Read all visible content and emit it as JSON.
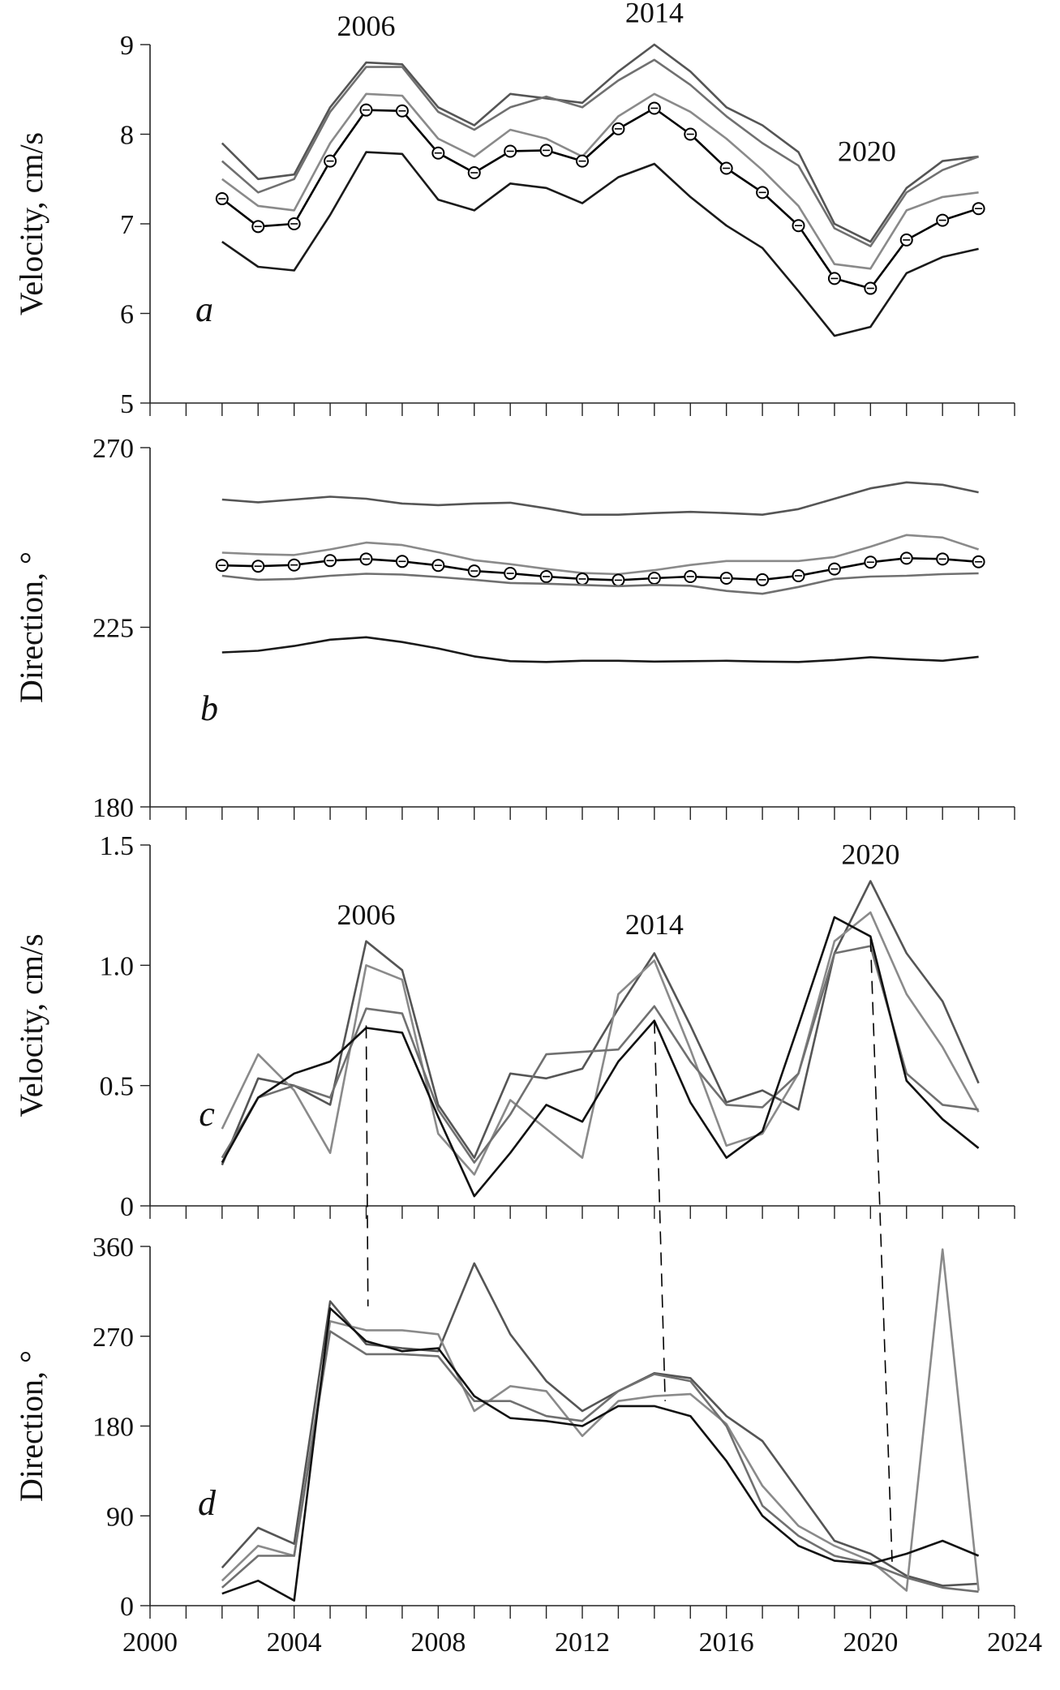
{
  "chart_data": [
    {
      "id": "a",
      "type": "line",
      "panel_label": "a",
      "ylabel": "Velocity, cm/s",
      "ylim": [
        5,
        9
      ],
      "yticks": [
        "5",
        "6",
        "7",
        "8",
        "9"
      ],
      "xlim": [
        2000,
        2024
      ],
      "x": [
        2002,
        2003,
        2004,
        2005,
        2006,
        2007,
        2008,
        2009,
        2010,
        2011,
        2012,
        2013,
        2014,
        2015,
        2016,
        2017,
        2018,
        2019,
        2020,
        2021,
        2022,
        2023
      ],
      "annotations": [
        {
          "text": "2006",
          "x": 2006,
          "y": 9.1
        },
        {
          "text": "2014",
          "x": 2014,
          "y": 9.25
        },
        {
          "text": "2020",
          "x": 2019.9,
          "y": 7.7
        }
      ],
      "series": [
        {
          "color": "#555555",
          "markers": false,
          "values": [
            7.9,
            7.5,
            7.55,
            8.3,
            8.8,
            8.78,
            8.3,
            8.1,
            8.45,
            8.4,
            8.35,
            8.7,
            9.0,
            8.7,
            8.3,
            8.1,
            7.8,
            7.0,
            6.8,
            7.4,
            7.7,
            7.75
          ]
        },
        {
          "color": "#707070",
          "markers": false,
          "values": [
            7.7,
            7.35,
            7.5,
            8.25,
            8.75,
            8.75,
            8.25,
            8.05,
            8.3,
            8.42,
            8.3,
            8.6,
            8.83,
            8.55,
            8.2,
            7.9,
            7.65,
            6.95,
            6.75,
            7.35,
            7.6,
            7.75
          ]
        },
        {
          "color": "#8a8a8a",
          "markers": false,
          "values": [
            7.5,
            7.2,
            7.15,
            7.9,
            8.45,
            8.43,
            7.95,
            7.75,
            8.05,
            7.95,
            7.75,
            8.2,
            8.45,
            8.25,
            7.95,
            7.6,
            7.2,
            6.55,
            6.5,
            7.15,
            7.3,
            7.35
          ]
        },
        {
          "color": "#000000",
          "markers": true,
          "values": [
            7.28,
            6.97,
            7.0,
            7.7,
            8.27,
            8.26,
            7.79,
            7.57,
            7.81,
            7.82,
            7.7,
            8.06,
            8.29,
            8.0,
            7.62,
            7.35,
            6.98,
            6.39,
            6.28,
            6.82,
            7.04,
            7.17
          ]
        },
        {
          "color": "#1a1a1a",
          "markers": false,
          "values": [
            6.8,
            6.52,
            6.48,
            7.1,
            7.8,
            7.78,
            7.27,
            7.15,
            7.45,
            7.4,
            7.23,
            7.52,
            7.67,
            7.3,
            6.98,
            6.73,
            6.25,
            5.75,
            5.85,
            6.45,
            6.63,
            6.72
          ]
        }
      ]
    },
    {
      "id": "b",
      "type": "line",
      "panel_label": "b",
      "ylabel": "Direction, °",
      "ylim": [
        180,
        270
      ],
      "yticks": [
        "180",
        "225",
        "270"
      ],
      "xlim": [
        2000,
        2024
      ],
      "x": [
        2002,
        2003,
        2004,
        2005,
        2006,
        2007,
        2008,
        2009,
        2010,
        2011,
        2012,
        2013,
        2014,
        2015,
        2016,
        2017,
        2018,
        2019,
        2020,
        2021,
        2022,
        2023
      ],
      "series": [
        {
          "color": "#555555",
          "markers": false,
          "values": [
            257,
            256.3,
            257,
            257.7,
            257.2,
            256,
            255.6,
            256,
            256.2,
            254.8,
            253.2,
            253.2,
            253.6,
            253.9,
            253.6,
            253.2,
            254.6,
            257.2,
            259.8,
            261.3,
            260.7,
            258.8
          ]
        },
        {
          "color": "#8a8a8a",
          "markers": false,
          "values": [
            243.7,
            243.3,
            243.1,
            244.5,
            246.2,
            245.6,
            243.8,
            241.8,
            240.8,
            239.6,
            238.6,
            238.3,
            239.3,
            240.6,
            241.6,
            241.6,
            241.6,
            242.6,
            245.2,
            248.1,
            247.5,
            244.5
          ]
        },
        {
          "color": "#000000",
          "markers": true,
          "values": [
            240.5,
            240.3,
            240.6,
            241.7,
            242.1,
            241.5,
            240.5,
            239.1,
            238.5,
            237.7,
            237.1,
            236.8,
            237.3,
            237.7,
            237.3,
            236.9,
            237.9,
            239.6,
            241.3,
            242.3,
            242.1,
            241.4
          ]
        },
        {
          "color": "#707070",
          "markers": false,
          "values": [
            237.9,
            236.9,
            237.1,
            237.9,
            238.4,
            238.2,
            237.6,
            236.9,
            236.1,
            235.9,
            235.6,
            235.3,
            235.6,
            235.4,
            234.1,
            233.4,
            235.1,
            237.1,
            237.7,
            237.9,
            238.3,
            238.5
          ]
        },
        {
          "color": "#1a1a1a",
          "markers": false,
          "values": [
            218.7,
            219.1,
            220.3,
            221.9,
            222.5,
            221.3,
            219.7,
            217.7,
            216.5,
            216.3,
            216.6,
            216.6,
            216.4,
            216.5,
            216.6,
            216.4,
            216.3,
            216.8,
            217.5,
            217.0,
            216.6,
            217.6
          ]
        }
      ]
    },
    {
      "id": "c",
      "type": "line",
      "panel_label": "c",
      "ylabel": "Velocity, cm/s",
      "ylim": [
        0,
        1.5
      ],
      "yticks": [
        "0",
        "0.5",
        "1.0",
        "1.5"
      ],
      "xlim": [
        2000,
        2024
      ],
      "x": [
        2002,
        2003,
        2004,
        2005,
        2006,
        2007,
        2008,
        2009,
        2010,
        2011,
        2012,
        2013,
        2014,
        2015,
        2016,
        2017,
        2018,
        2019,
        2020,
        2021,
        2022,
        2023
      ],
      "annotations": [
        {
          "text": "2006",
          "x": 2006,
          "y": 1.17
        },
        {
          "text": "2014",
          "x": 2014,
          "y": 1.13
        },
        {
          "text": "2020",
          "x": 2020,
          "y": 1.42
        }
      ],
      "dashed_lines": [
        {
          "x_top": 2006,
          "y_top": 0.75,
          "x_bottom": 2006.05,
          "y_bottom": 300
        },
        {
          "x_top": 2014,
          "y_top": 0.77,
          "x_bottom": 2014.3,
          "y_bottom": 205
        },
        {
          "x_top": 2020,
          "y_top": 1.11,
          "x_bottom": 2020.6,
          "y_bottom": 44
        }
      ],
      "series": [
        {
          "color": "#555555",
          "markers": false,
          "values": [
            0.17,
            0.53,
            0.5,
            0.42,
            1.1,
            0.98,
            0.42,
            0.2,
            0.55,
            0.53,
            0.57,
            0.82,
            1.05,
            0.75,
            0.43,
            0.48,
            0.4,
            1.05,
            1.35,
            1.05,
            0.85,
            0.51
          ]
        },
        {
          "color": "#8a8a8a",
          "markers": false,
          "values": [
            0.32,
            0.63,
            0.48,
            0.22,
            1.0,
            0.94,
            0.3,
            0.13,
            0.44,
            0.32,
            0.2,
            0.88,
            1.02,
            0.65,
            0.25,
            0.3,
            0.55,
            1.1,
            1.22,
            0.88,
            0.66,
            0.39
          ]
        },
        {
          "color": "#707070",
          "markers": false,
          "values": [
            0.2,
            0.45,
            0.5,
            0.45,
            0.82,
            0.8,
            0.4,
            0.18,
            0.38,
            0.63,
            0.64,
            0.65,
            0.83,
            0.6,
            0.42,
            0.41,
            0.55,
            1.05,
            1.08,
            0.55,
            0.42,
            0.4
          ]
        },
        {
          "color": "#111111",
          "markers": false,
          "values": [
            0.18,
            0.45,
            0.55,
            0.6,
            0.74,
            0.72,
            0.37,
            0.04,
            0.22,
            0.42,
            0.35,
            0.6,
            0.77,
            0.43,
            0.2,
            0.31,
            0.75,
            1.2,
            1.12,
            0.52,
            0.36,
            0.24
          ]
        }
      ]
    },
    {
      "id": "d",
      "type": "line",
      "panel_label": "d",
      "ylabel": "Direction, °",
      "ylim": [
        0,
        360
      ],
      "yticks": [
        "0",
        "90",
        "180",
        "270",
        "360"
      ],
      "xlim": [
        2000,
        2024
      ],
      "xticks": [
        "2000",
        "2004",
        "2008",
        "2012",
        "2016",
        "2020",
        "2024"
      ],
      "x": [
        2002,
        2003,
        2004,
        2005,
        2006,
        2007,
        2008,
        2009,
        2010,
        2011,
        2012,
        2013,
        2014,
        2015,
        2016,
        2017,
        2018,
        2019,
        2020,
        2021,
        2022,
        2023
      ],
      "series": [
        {
          "color": "#555555",
          "markers": false,
          "values": [
            38,
            78,
            62,
            305,
            262,
            258,
            255,
            343,
            272,
            225,
            195,
            215,
            233,
            228,
            190,
            165,
            115,
            65,
            52,
            30,
            20,
            22
          ]
        },
        {
          "color": "#8a8a8a",
          "markers": false,
          "values": [
            25,
            60,
            50,
            285,
            276,
            276,
            272,
            195,
            220,
            215,
            170,
            205,
            210,
            212,
            182,
            120,
            80,
            60,
            45,
            15,
            357,
            15
          ]
        },
        {
          "color": "#707070",
          "markers": false,
          "values": [
            18,
            50,
            50,
            275,
            252,
            252,
            250,
            205,
            205,
            190,
            185,
            215,
            232,
            225,
            180,
            100,
            70,
            50,
            42,
            28,
            18,
            14
          ]
        },
        {
          "color": "#111111",
          "markers": false,
          "values": [
            12,
            25,
            5,
            298,
            265,
            255,
            258,
            210,
            188,
            185,
            180,
            200,
            200,
            190,
            145,
            90,
            60,
            45,
            42,
            52,
            65,
            50
          ]
        }
      ]
    }
  ]
}
